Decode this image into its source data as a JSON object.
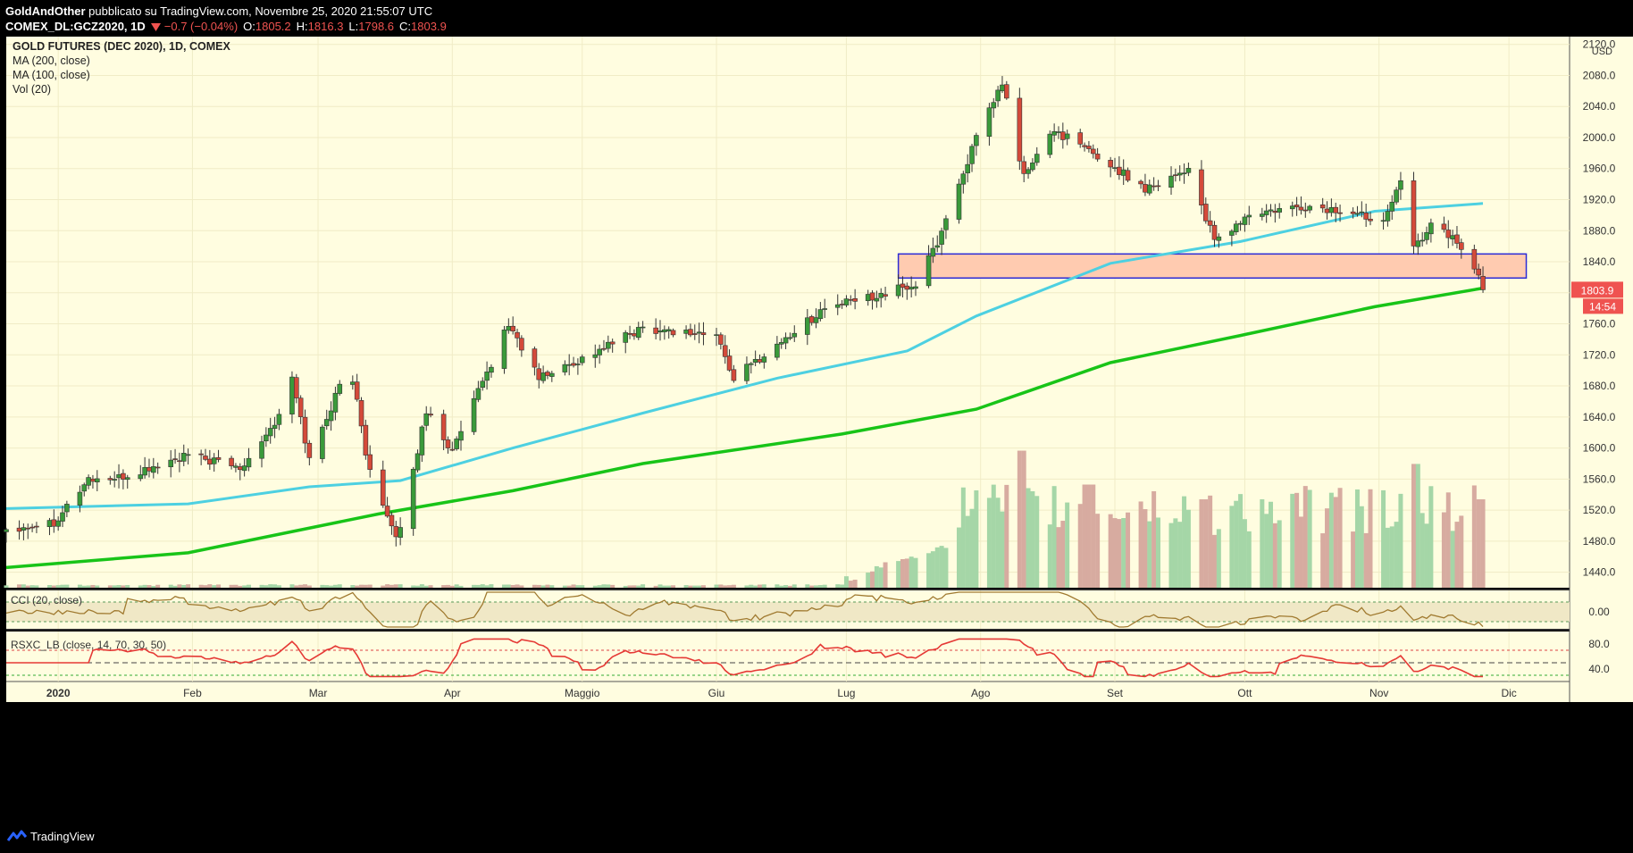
{
  "header": {
    "author": "GoldAndOther",
    "published": "pubblicato su TradingView.com, Novembre 25, 2020 21:55:07 UTC",
    "symbol_line": "COMEX_DL:GCZ2020, 1D",
    "change": "−0.7 (−0.04%)",
    "ohlc": [
      {
        "label": "O:",
        "value": "1805.2"
      },
      {
        "label": "H:",
        "value": "1816.3"
      },
      {
        "label": "L:",
        "value": "1798.6"
      },
      {
        "label": "C:",
        "value": "1803.9"
      }
    ]
  },
  "legend": [
    "GOLD FUTURES (DEC 2020), 1D, COMEX",
    "MA (200, close)",
    "MA (100, close)",
    "Vol (20)"
  ],
  "footer": {
    "brand": "TradingView"
  },
  "price_tag": {
    "value": "1803.9",
    "countdown": "14:54"
  },
  "colors": {
    "up": "#26a69a",
    "down": "#ef5350",
    "ma100": "#4dd0e1",
    "ma200": "#18c418",
    "background": "#fffde0"
  },
  "chart_data": [
    {
      "type": "candlestick",
      "title": "GOLD FUTURES (DEC 2020), 1D, COMEX",
      "currency": "USD",
      "y_axis": {
        "ticks": [
          1440,
          1480,
          1520,
          1560,
          1600,
          1640,
          1680,
          1720,
          1760,
          1800,
          1840,
          1880,
          1920,
          1960,
          2000,
          2040,
          2080,
          2120
        ],
        "range": [
          1420,
          2130
        ]
      },
      "x_axis": {
        "range": [
          "2019-12-20",
          "2020-12-15"
        ],
        "ticks": [
          {
            "label": "2020",
            "date": "2020-01-01"
          },
          {
            "label": "Feb",
            "date": "2020-02-01"
          },
          {
            "label": "Mar",
            "date": "2020-03-01"
          },
          {
            "label": "Apr",
            "date": "2020-04-01"
          },
          {
            "label": "Maggio",
            "date": "2020-05-01"
          },
          {
            "label": "Giu",
            "date": "2020-06-01"
          },
          {
            "label": "Lug",
            "date": "2020-07-01"
          },
          {
            "label": "Ago",
            "date": "2020-08-01"
          },
          {
            "label": "Set",
            "date": "2020-09-01"
          },
          {
            "label": "Ott",
            "date": "2020-10-01"
          },
          {
            "label": "Nov",
            "date": "2020-11-01"
          },
          {
            "label": "Dic",
            "date": "2020-12-01"
          }
        ]
      },
      "close_anchors": [
        [
          "2019-12-20",
          1496
        ],
        [
          "2019-12-31",
          1505
        ],
        [
          "2020-01-08",
          1560
        ],
        [
          "2020-01-15",
          1560
        ],
        [
          "2020-01-31",
          1590
        ],
        [
          "2020-02-12",
          1575
        ],
        [
          "2020-02-21",
          1640
        ],
        [
          "2020-02-24",
          1690
        ],
        [
          "2020-02-28",
          1585
        ],
        [
          "2020-03-06",
          1680
        ],
        [
          "2020-03-09",
          1690
        ],
        [
          "2020-03-12",
          1595
        ],
        [
          "2020-03-16",
          1525
        ],
        [
          "2020-03-19",
          1480
        ],
        [
          "2020-03-23",
          1570
        ],
        [
          "2020-03-26",
          1650
        ],
        [
          "2020-04-01",
          1595
        ],
        [
          "2020-04-14",
          1760
        ],
        [
          "2020-04-21",
          1690
        ],
        [
          "2020-05-01",
          1715
        ],
        [
          "2020-05-15",
          1755
        ],
        [
          "2020-06-01",
          1745
        ],
        [
          "2020-06-05",
          1690
        ],
        [
          "2020-06-26",
          1780
        ],
        [
          "2020-07-10",
          1800
        ],
        [
          "2020-07-17",
          1810
        ],
        [
          "2020-07-22",
          1865
        ],
        [
          "2020-07-30",
          1985
        ],
        [
          "2020-08-06",
          2070
        ],
        [
          "2020-08-11",
          1950
        ],
        [
          "2020-08-18",
          2010
        ],
        [
          "2020-08-28",
          1975
        ],
        [
          "2020-09-08",
          1935
        ],
        [
          "2020-09-18",
          1960
        ],
        [
          "2020-09-24",
          1865
        ],
        [
          "2020-10-02",
          1900
        ],
        [
          "2020-10-15",
          1910
        ],
        [
          "2020-10-23",
          1905
        ],
        [
          "2020-11-02",
          1895
        ],
        [
          "2020-11-06",
          1950
        ],
        [
          "2020-11-09",
          1855
        ],
        [
          "2020-11-13",
          1890
        ],
        [
          "2020-11-18",
          1870
        ],
        [
          "2020-11-23",
          1835
        ],
        [
          "2020-11-25",
          1803.9
        ]
      ],
      "ma100": [
        [
          "2019-12-20",
          1522
        ],
        [
          "2020-01-31",
          1528
        ],
        [
          "2020-02-28",
          1550
        ],
        [
          "2020-03-20",
          1558
        ],
        [
          "2020-04-15",
          1600
        ],
        [
          "2020-05-15",
          1645
        ],
        [
          "2020-06-15",
          1690
        ],
        [
          "2020-07-15",
          1725
        ],
        [
          "2020-07-31",
          1770
        ],
        [
          "2020-08-31",
          1838
        ],
        [
          "2020-09-30",
          1866
        ],
        [
          "2020-10-31",
          1905
        ],
        [
          "2020-11-25",
          1915
        ]
      ],
      "ma200": [
        [
          "2019-12-20",
          1446
        ],
        [
          "2020-01-31",
          1465
        ],
        [
          "2020-03-15",
          1515
        ],
        [
          "2020-04-15",
          1545
        ],
        [
          "2020-05-15",
          1580
        ],
        [
          "2020-06-30",
          1618
        ],
        [
          "2020-07-31",
          1650
        ],
        [
          "2020-08-31",
          1710
        ],
        [
          "2020-09-30",
          1745
        ],
        [
          "2020-10-31",
          1782
        ],
        [
          "2020-11-25",
          1806
        ]
      ],
      "zone": {
        "start": "2020-07-13",
        "end": "2020-12-05",
        "low": 1819,
        "high": 1850
      },
      "volume": {
        "pattern": "low until July, then rising sharply; spikes around 2020-08-10, 2020-09-21 and 2020-11-09"
      }
    },
    {
      "type": "line",
      "title": "CCI (20, close)",
      "y_axis": {
        "ticks": [
          "0.00"
        ]
      },
      "series": [
        {
          "values_shape": "oscillating around 0"
        }
      ]
    },
    {
      "type": "line",
      "title": "RSXC_LB (close, 14, 70, 30, 50)",
      "y_axis": {
        "ticks": [
          "40.0",
          "80.0"
        ],
        "levels": [
          70,
          50,
          30
        ]
      },
      "series": [
        {
          "values_shape": "oscillating between 30 and 88"
        }
      ]
    }
  ]
}
